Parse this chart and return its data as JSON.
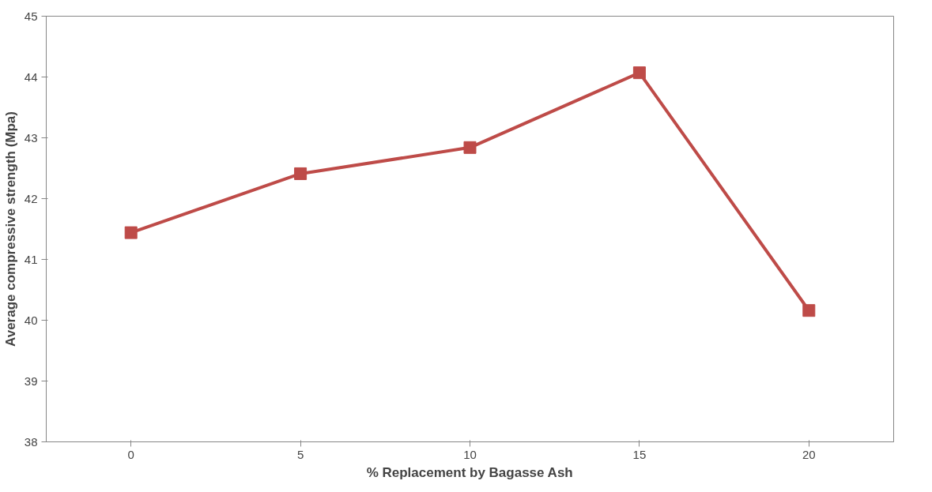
{
  "chart_data": {
    "type": "line",
    "xlabel": "% Replacement by Bagasse Ash",
    "ylabel": "Average compressive strength (Mpa)",
    "categories": [
      "0",
      "5",
      "10",
      "15",
      "20"
    ],
    "series": [
      {
        "color": "#be4b48",
        "values": [
          41.44,
          42.41,
          42.84,
          44.07,
          40.16
        ]
      }
    ],
    "ylim": [
      38,
      45
    ],
    "yticks": [
      38,
      39,
      40,
      41,
      42,
      43,
      44,
      45
    ],
    "grid": false,
    "marker": "square",
    "line_style": "solid"
  }
}
